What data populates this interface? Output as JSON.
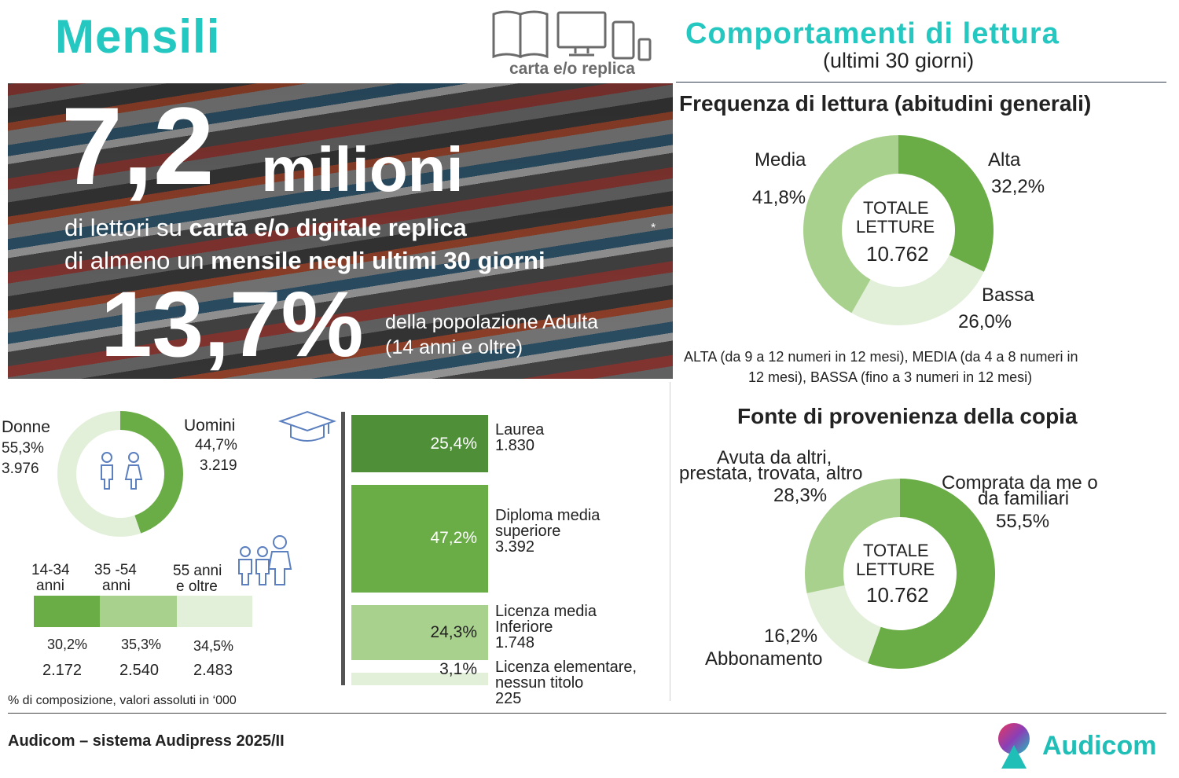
{
  "header": {
    "title": "Mensili",
    "media_caption": "carta e/o replica",
    "right_title": "Comportamenti di lettura",
    "right_subtitle": "(ultimi 30 giorni)"
  },
  "hero": {
    "big_number": "7,2",
    "big_unit": "milioni",
    "line1_a": "di lettori su ",
    "line1_b": "carta e/o digitale replica",
    "line2_a": "di almeno un ",
    "line2_b": "mensile negli ultimi 30 giorni",
    "asterisk": "*",
    "percent": "13,7%",
    "pop_line1": "della popolazione Adulta",
    "pop_line2": "(14 anni e oltre)"
  },
  "gender": {
    "female_label": "Donne",
    "female_pct": "55,3%",
    "female_abs": "3.976",
    "male_label": "Uomini",
    "male_pct": "44,7%",
    "male_abs": "3.219"
  },
  "age": {
    "labels": [
      "14-34",
      "anni",
      "35 -54",
      "anni",
      "55 anni",
      "e oltre"
    ],
    "pcts": [
      "30,2%",
      "35,3%",
      "34,5%"
    ],
    "abs": [
      "2.172",
      "2.540",
      "2.483"
    ]
  },
  "education": [
    {
      "pct": "25,4%",
      "l1": "Laurea",
      "l2": "1.830",
      "l3": ""
    },
    {
      "pct": "47,2%",
      "l1": "Diploma media",
      "l2": "superiore",
      "l3": "3.392"
    },
    {
      "pct": "24,3%",
      "l1": "Licenza media",
      "l2": "Inferiore",
      "l3": "1.748"
    },
    {
      "pct": "3,1%",
      "l1": "Licenza elementare,",
      "l2": "nessun titolo",
      "l3": "225"
    }
  ],
  "footnote": "% di composizione, valori assoluti in ‘000",
  "frequency": {
    "title": "Frequenza di lettura  (abitudini generali)",
    "center_l1": "TOTALE",
    "center_l2": "LETTURE",
    "center_val": "10.762",
    "alta_label": "Alta",
    "alta_pct": "32,2%",
    "media_label": "Media",
    "media_pct": "41,8%",
    "bassa_label": "Bassa",
    "bassa_pct": "26,0%",
    "note_l1": "ALTA (da 9 a 12 numeri in 12 mesi), MEDIA (da 4 a 8 numeri in",
    "note_l2": "12 mesi), BASSA (fino a 3 numeri in 12 mesi)"
  },
  "source": {
    "title": "Fonte di provenienza della copia",
    "center_l1": "TOTALE",
    "center_l2": "LETTURE",
    "center_val": "10.762",
    "bought_l1": "Comprata da me o",
    "bought_l2": "da familiari",
    "bought_pct": "55,5%",
    "others_l1": "Avuta da altri,",
    "others_l2": "prestata, trovata, altro",
    "others_pct": "28,3%",
    "sub_pct": "16,2%",
    "sub_label": "Abbonamento"
  },
  "footer": {
    "source_text": "Audicom – sistema Audipress 2025/II",
    "logo_text": "Audicom"
  },
  "colors": {
    "teal": "#25c8c1",
    "green_dark": "#4e8f37",
    "green": "#6aad47",
    "green_light": "#a9d18e",
    "green_pale": "#e2efd9"
  },
  "chart_data": [
    {
      "type": "pie",
      "title": "Frequenza di lettura  (abitudini generali)",
      "categories": [
        "Alta",
        "Bassa",
        "Media"
      ],
      "values": [
        32.2,
        26.0,
        41.8
      ]
    },
    {
      "type": "pie",
      "title": "Fonte di provenienza della copia",
      "categories": [
        "Comprata da me o da familiari",
        "Abbonamento",
        "Avuta da altri, prestata, trovata, altro"
      ],
      "values": [
        55.5,
        16.2,
        28.3
      ]
    },
    {
      "type": "pie",
      "categories": [
        "Uomini",
        "Donne"
      ],
      "values": [
        44.7,
        55.3
      ]
    },
    {
      "type": "bar",
      "categories": [
        "14-34 anni",
        "35 -54 anni",
        "55 anni e oltre"
      ],
      "values": [
        30.2,
        35.3,
        34.5
      ]
    },
    {
      "type": "bar",
      "categories": [
        "Laurea",
        "Diploma media superiore",
        "Licenza media Inferiore",
        "Licenza elementare, nessun titolo"
      ],
      "values": [
        25.4,
        47.2,
        24.3,
        3.1
      ]
    }
  ]
}
